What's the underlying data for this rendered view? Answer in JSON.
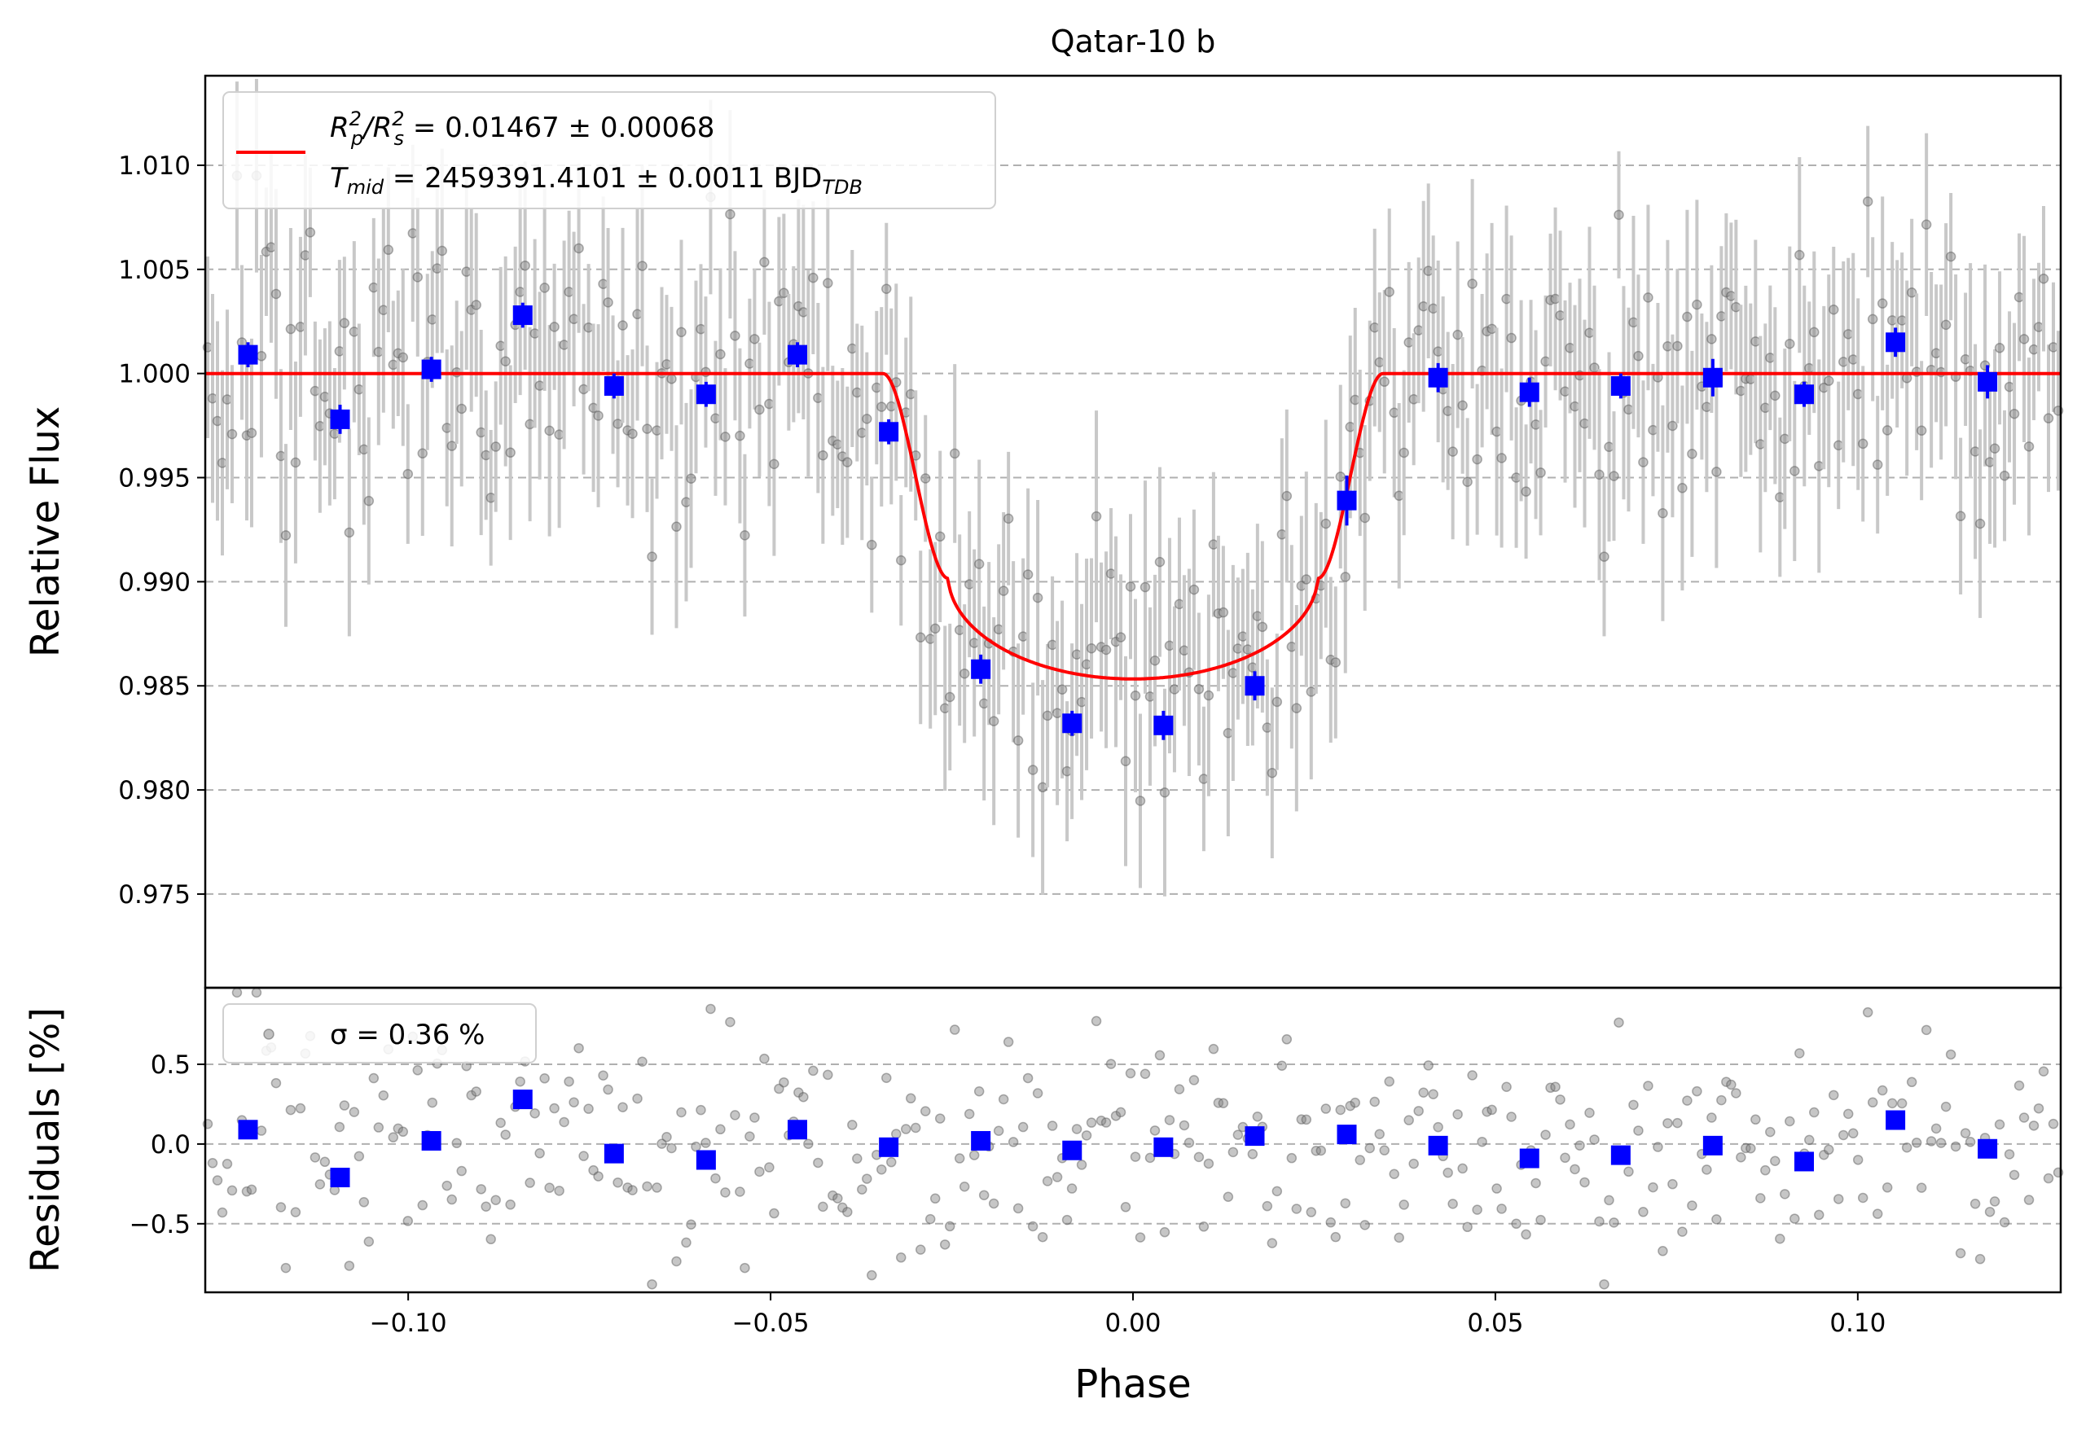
{
  "chart_data": [
    {
      "type": "scatter",
      "title": "Qatar-10 b",
      "xlabel": "",
      "ylabel": "Relative Flux",
      "xlim": [
        -0.128,
        0.128
      ],
      "ylim": [
        0.9705,
        1.0143
      ],
      "yticks": [
        0.975,
        0.98,
        0.985,
        0.99,
        0.995,
        1.0,
        1.005,
        1.01
      ],
      "ytick_labels": [
        "0.975",
        "0.980",
        "0.985",
        "0.990",
        "0.995",
        "1.000",
        "1.005",
        "1.010"
      ],
      "grid": "horizontal dashed",
      "legend": {
        "position": "top-left",
        "line1": {
          "symbol_main": "R",
          "p_sup": "2",
          "p_sub": "p",
          "slash": "/R",
          "s_sup": "2",
          "s_sub": "s",
          "text": " = 0.01467 ± 0.00068"
        },
        "line2": {
          "symbol_main": "T",
          "sub": "mid",
          "text": " = 2459391.4101 ± 0.0011 BJD",
          "unit_sub": "TDB"
        }
      },
      "colors": {
        "model": "#ff0000",
        "binned": "#0000ff",
        "raw": "#808080",
        "errorbar": "#c8c8c8"
      },
      "model": {
        "baseline": 1.0,
        "depth": 0.01467,
        "t_contact_outer": 0.0345,
        "t_contact_inner": 0.0255,
        "limb_darkening_a": 0.34
      },
      "raw_data_description_count": 380,
      "binned": {
        "x": [
          -0.1221,
          -0.1094,
          -0.0968,
          -0.0842,
          -0.0716,
          -0.0589,
          -0.0463,
          -0.0337,
          -0.021,
          -0.0084,
          0.0042,
          0.0168,
          0.0295,
          0.0421,
          0.0547,
          0.0673,
          0.08,
          0.0926,
          0.1052,
          0.1179
        ],
        "y": [
          1.0009,
          0.9978,
          1.0002,
          1.0028,
          0.9994,
          0.999,
          1.0009,
          0.9972,
          0.9858,
          0.9832,
          0.9831,
          0.985,
          0.9939,
          0.9998,
          0.9991,
          0.9994,
          0.9998,
          0.999,
          1.0015,
          0.9996
        ],
        "yerr": [
          0.0006,
          0.0007,
          0.0006,
          0.0006,
          0.0006,
          0.0006,
          0.0006,
          0.0006,
          0.0007,
          0.0006,
          0.0007,
          0.0007,
          0.0012,
          0.0007,
          0.0007,
          0.0006,
          0.0009,
          0.0006,
          0.0007,
          0.0008
        ]
      }
    },
    {
      "type": "scatter",
      "title": "",
      "xlabel": "Phase",
      "ylabel": "Residuals [%]",
      "xlim": [
        -0.128,
        0.128
      ],
      "ylim": [
        -0.93,
        0.98
      ],
      "yticks": [
        -0.5,
        0.0,
        0.5
      ],
      "ytick_labels": [
        "−0.5",
        "0.0",
        "0.5"
      ],
      "xticks": [
        -0.1,
        -0.05,
        0.0,
        0.05,
        0.1
      ],
      "xtick_labels": [
        "−0.10",
        "−0.05",
        "0.00",
        "0.05",
        "0.10"
      ],
      "grid": "horizontal dashed",
      "legend": {
        "position": "top-left",
        "label": "σ = 0.36 %"
      },
      "binned": {
        "x": [
          -0.1221,
          -0.1094,
          -0.0968,
          -0.0842,
          -0.0716,
          -0.0589,
          -0.0463,
          -0.0337,
          -0.021,
          -0.0084,
          0.0042,
          0.0168,
          0.0295,
          0.0421,
          0.0547,
          0.0673,
          0.08,
          0.0926,
          0.1052,
          0.1179
        ],
        "y": [
          0.09,
          -0.21,
          0.02,
          0.28,
          -0.06,
          -0.1,
          0.09,
          -0.02,
          0.02,
          -0.04,
          -0.02,
          0.05,
          0.06,
          -0.01,
          -0.09,
          -0.07,
          -0.01,
          -0.11,
          0.15,
          -0.03
        ]
      }
    }
  ]
}
